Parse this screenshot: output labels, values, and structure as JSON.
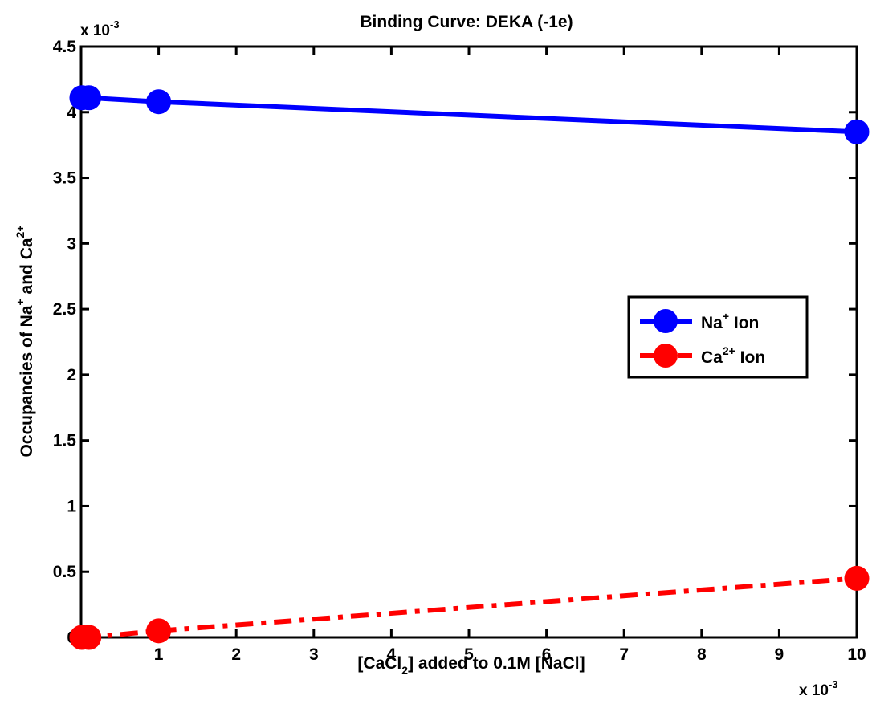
{
  "chart_data": {
    "type": "line",
    "title": "Binding Curve: DEKA (-1e)",
    "xlabel": {
      "pre": "[CaCl",
      "sub": "2",
      "post": "] added to 0.1M [NaCl]"
    },
    "ylabel": {
      "p1": "Occupancies of Na",
      "sup1": "+",
      "p2": " and Ca",
      "sup2": "2+"
    },
    "x_multiplier": {
      "base": "x 10",
      "exp": "-3"
    },
    "y_multiplier": {
      "base": "x 10",
      "exp": "-3"
    },
    "xlim": [
      0,
      10
    ],
    "ylim": [
      0,
      4.5
    ],
    "xticks": [
      1,
      2,
      3,
      4,
      5,
      6,
      7,
      8,
      9,
      10
    ],
    "xtick_labels": [
      "1",
      "2",
      "3",
      "4",
      "5",
      "6",
      "7",
      "8",
      "9",
      "10"
    ],
    "yticks": [
      0,
      0.5,
      1,
      1.5,
      2,
      2.5,
      3,
      3.5,
      4,
      4.5
    ],
    "ytick_labels": [
      "0",
      "0.5",
      "1",
      "1.5",
      "2",
      "2.5",
      "3",
      "3.5",
      "4",
      "4.5"
    ],
    "scale_note": "x and y values in units of 10^-3",
    "grid": false,
    "legend_position": "right",
    "series": [
      {
        "name": "Na+ Ion",
        "legend_base": "Na",
        "legend_sup": "+",
        "legend_post": " Ion",
        "color": "#0000ff",
        "line_style": "solid",
        "x": [
          0.01,
          0.1,
          1,
          10
        ],
        "y": [
          4.11,
          4.11,
          4.08,
          3.85
        ]
      },
      {
        "name": "Ca2+ Ion",
        "legend_base": "Ca",
        "legend_sup": "2+",
        "legend_post": " Ion",
        "color": "#ff0000",
        "line_style": "dashdot",
        "x": [
          0.01,
          0.1,
          1,
          10
        ],
        "y": [
          0.0,
          0.0,
          0.05,
          0.45
        ]
      }
    ]
  }
}
